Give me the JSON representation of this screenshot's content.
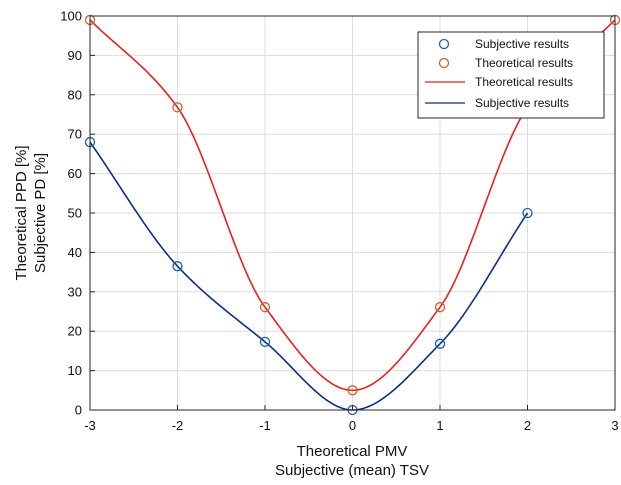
{
  "chart_data": {
    "type": "line",
    "xlabel": [
      "Theoretical PMV",
      "Subjective (mean) TSV"
    ],
    "ylabel": [
      "Theoretical PPD [%]",
      "Subjective PD [%]"
    ],
    "xlim": [
      -3,
      3
    ],
    "ylim": [
      0,
      100
    ],
    "xticks": [
      "-3",
      "-2",
      "-1",
      "0",
      "1",
      "2",
      "3"
    ],
    "yticks": [
      "0",
      "10",
      "20",
      "30",
      "40",
      "50",
      "60",
      "70",
      "80",
      "90",
      "100"
    ],
    "grid": true,
    "legend_position": "top-right",
    "series": [
      {
        "name": "Subjective results",
        "kind": "markers",
        "color": "#1f5fa8",
        "x": [
          -3,
          -2,
          -1,
          0,
          1,
          2
        ],
        "y": [
          68,
          36.5,
          17.3,
          0,
          16.8,
          50
        ]
      },
      {
        "name": "Theoretical results",
        "kind": "markers",
        "color": "#d0602c",
        "x": [
          -3,
          -2,
          -1,
          0,
          1,
          2,
          3
        ],
        "y": [
          99,
          76.8,
          26.1,
          5,
          26.1,
          76.8,
          99
        ]
      },
      {
        "name": "Theoretical results",
        "kind": "line",
        "color": "#e8221f",
        "x": [
          -3,
          -2,
          -1,
          0,
          1,
          2,
          3
        ],
        "y": [
          99,
          76.8,
          26.1,
          5,
          26.1,
          76.8,
          99
        ]
      },
      {
        "name": "Subjective results",
        "kind": "line",
        "color": "#0d2d8a",
        "x": [
          -3,
          -2,
          -1,
          0,
          1,
          2
        ],
        "y": [
          68,
          36.5,
          17.3,
          0,
          16.8,
          50
        ]
      }
    ]
  }
}
